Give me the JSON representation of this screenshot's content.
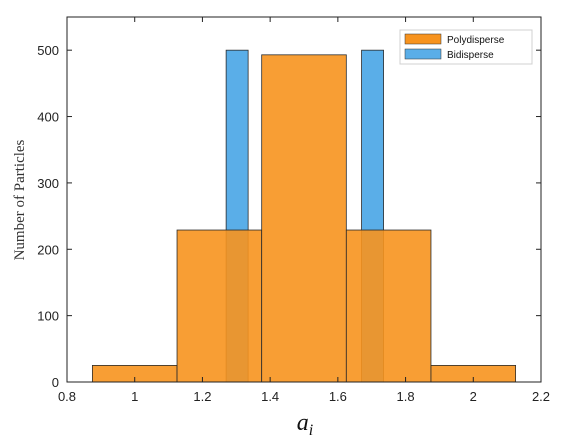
{
  "chart_data": {
    "type": "bar",
    "ylabel": "Number of Particles",
    "xlabel_base": "a",
    "xlabel_sub": "i",
    "xlim": [
      0.8,
      2.2
    ],
    "ylim": [
      0,
      550
    ],
    "xticks": [
      0.8,
      1,
      1.2,
      1.4,
      1.6,
      1.8,
      2,
      2.2
    ],
    "xtick_labels": [
      "0.8",
      "1",
      "1.2",
      "1.4",
      "1.6",
      "1.8",
      "2",
      "2.2"
    ],
    "yticks": [
      0,
      100,
      200,
      300,
      400,
      500
    ],
    "ytick_labels": [
      "0",
      "100",
      "200",
      "300",
      "400",
      "500"
    ],
    "legend_position": "top-right",
    "series": [
      {
        "name": "Polydisperse",
        "color": "#f7931e",
        "bins": [
          {
            "x0": 0.875,
            "x1": 1.125,
            "count": 25
          },
          {
            "x0": 1.125,
            "x1": 1.375,
            "count": 229
          },
          {
            "x0": 1.375,
            "x1": 1.625,
            "count": 493
          },
          {
            "x0": 1.625,
            "x1": 1.875,
            "count": 229
          },
          {
            "x0": 1.875,
            "x1": 2.125,
            "count": 25
          }
        ]
      },
      {
        "name": "Bidisperse",
        "color": "#5aaee8",
        "bins": [
          {
            "x0": 1.27,
            "x1": 1.335,
            "count": 500
          },
          {
            "x0": 1.67,
            "x1": 1.735,
            "count": 500
          }
        ]
      }
    ]
  }
}
